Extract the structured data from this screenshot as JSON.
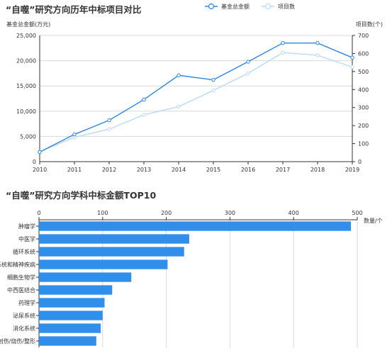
{
  "chart_data": [
    {
      "type": "line",
      "title": "“自噬”研究方向历年中标项目对比",
      "x": [
        2010,
        2011,
        2012,
        2013,
        2014,
        2015,
        2016,
        2017,
        2018,
        2019
      ],
      "y_left_label": "基金总金额(万元)",
      "y_right_label": "项目数(个)",
      "y_left_ticks": [
        "0",
        "5,000",
        "10,000",
        "15,000",
        "20,000",
        "25,000"
      ],
      "y_right_ticks": [
        "0",
        "100",
        "200",
        "300",
        "400",
        "500",
        "600",
        "700"
      ],
      "ylim_left": [
        0,
        25000
      ],
      "ylim_right": [
        0,
        700
      ],
      "grid": true,
      "legend_position": "top-right",
      "series": [
        {
          "name": "基金总金额",
          "axis": "left",
          "color": "#2f86df",
          "values": [
            1900,
            5400,
            8200,
            12300,
            17100,
            16200,
            19800,
            23500,
            23500,
            20600
          ]
        },
        {
          "name": "项目数",
          "axis": "right",
          "color": "#b9daf5",
          "values": [
            55,
            135,
            180,
            260,
            305,
            395,
            490,
            605,
            590,
            525
          ]
        }
      ]
    },
    {
      "type": "bar",
      "orientation": "horizontal",
      "title": "“自噬”研究方向学科中标金额TOP10",
      "x_unit_label": "数量/个",
      "xlim": [
        0,
        500
      ],
      "x_ticks": [
        "0",
        "100",
        "200",
        "300",
        "400",
        "500"
      ],
      "grid": true,
      "color": "#2f8fea",
      "categories": [
        "肿瘤学",
        "中医学",
        "循环系统",
        "神经系统和精神疾病",
        "细胞生物学",
        "中西医结合",
        "药理学",
        "泌尿系统",
        "消化系统",
        "创伤/烧伤/整形"
      ],
      "values": [
        490,
        236,
        228,
        202,
        145,
        115,
        103,
        100,
        97,
        90
      ]
    }
  ]
}
